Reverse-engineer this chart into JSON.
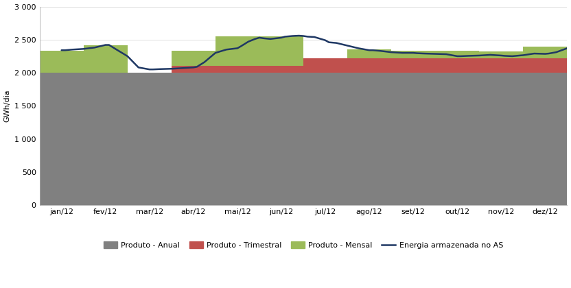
{
  "xlabel": "",
  "ylabel": "GWh/dia",
  "ylim": [
    0,
    3000
  ],
  "yticks": [
    0,
    500,
    1000,
    1500,
    2000,
    2500,
    3000
  ],
  "background_color": "#ffffff",
  "grid_color": "#d9d9d9",
  "months": [
    "jan/12",
    "fev/12",
    "mar/12",
    "abr/12",
    "mai/12",
    "jun/12",
    "jul/12",
    "ago/12",
    "set/12",
    "out/12",
    "nov/12",
    "dez/12"
  ],
  "anual_color": "#808080",
  "trimestral_color": "#c0504d",
  "mensal_color": "#9bbb59",
  "line_color": "#1f3864",
  "legend_labels": [
    "Produto - Anual",
    "Produto - Trimestral",
    "Produto - Mensal",
    "Energia armazenada no AS"
  ],
  "anual": [
    2000,
    2000,
    2000,
    2000,
    2000,
    2000,
    2000,
    2000,
    2000,
    2000,
    2000,
    2000
  ],
  "trimestral": [
    0,
    0,
    0,
    100,
    100,
    100,
    220,
    220,
    220,
    220,
    220,
    220
  ],
  "mensal": [
    330,
    420,
    0,
    235,
    450,
    450,
    0,
    130,
    110,
    110,
    100,
    175
  ],
  "energia_x": [
    0.0,
    0.08,
    0.25,
    0.5,
    0.75,
    1.0,
    1.08,
    1.25,
    1.5,
    1.75,
    2.0,
    2.08,
    2.25,
    2.5,
    2.75,
    3.0,
    3.08,
    3.25,
    3.5,
    3.75,
    4.0,
    4.08,
    4.25,
    4.4,
    4.5,
    4.6,
    4.75,
    5.0,
    5.08,
    5.25,
    5.4,
    5.5,
    5.6,
    5.75,
    6.0,
    6.08,
    6.25,
    6.5,
    6.75,
    7.0,
    7.08,
    7.25,
    7.5,
    7.75,
    8.0,
    8.08,
    8.25,
    8.5,
    8.75,
    9.0,
    9.08,
    9.25,
    9.5,
    9.75,
    10.0,
    10.08,
    10.25,
    10.5,
    10.75,
    11.0,
    11.08,
    11.25,
    11.5,
    11.75,
    11.92
  ],
  "energia_y": [
    2340,
    2340,
    2350,
    2360,
    2380,
    2420,
    2420,
    2350,
    2250,
    2080,
    2050,
    2050,
    2055,
    2060,
    2070,
    2080,
    2090,
    2160,
    2300,
    2350,
    2370,
    2400,
    2470,
    2510,
    2530,
    2520,
    2510,
    2530,
    2545,
    2555,
    2560,
    2555,
    2545,
    2540,
    2490,
    2460,
    2450,
    2410,
    2370,
    2340,
    2340,
    2330,
    2310,
    2300,
    2300,
    2295,
    2290,
    2285,
    2280,
    2250,
    2250,
    2255,
    2260,
    2270,
    2260,
    2255,
    2250,
    2265,
    2290,
    2285,
    2290,
    2310,
    2370,
    2410,
    2415
  ]
}
